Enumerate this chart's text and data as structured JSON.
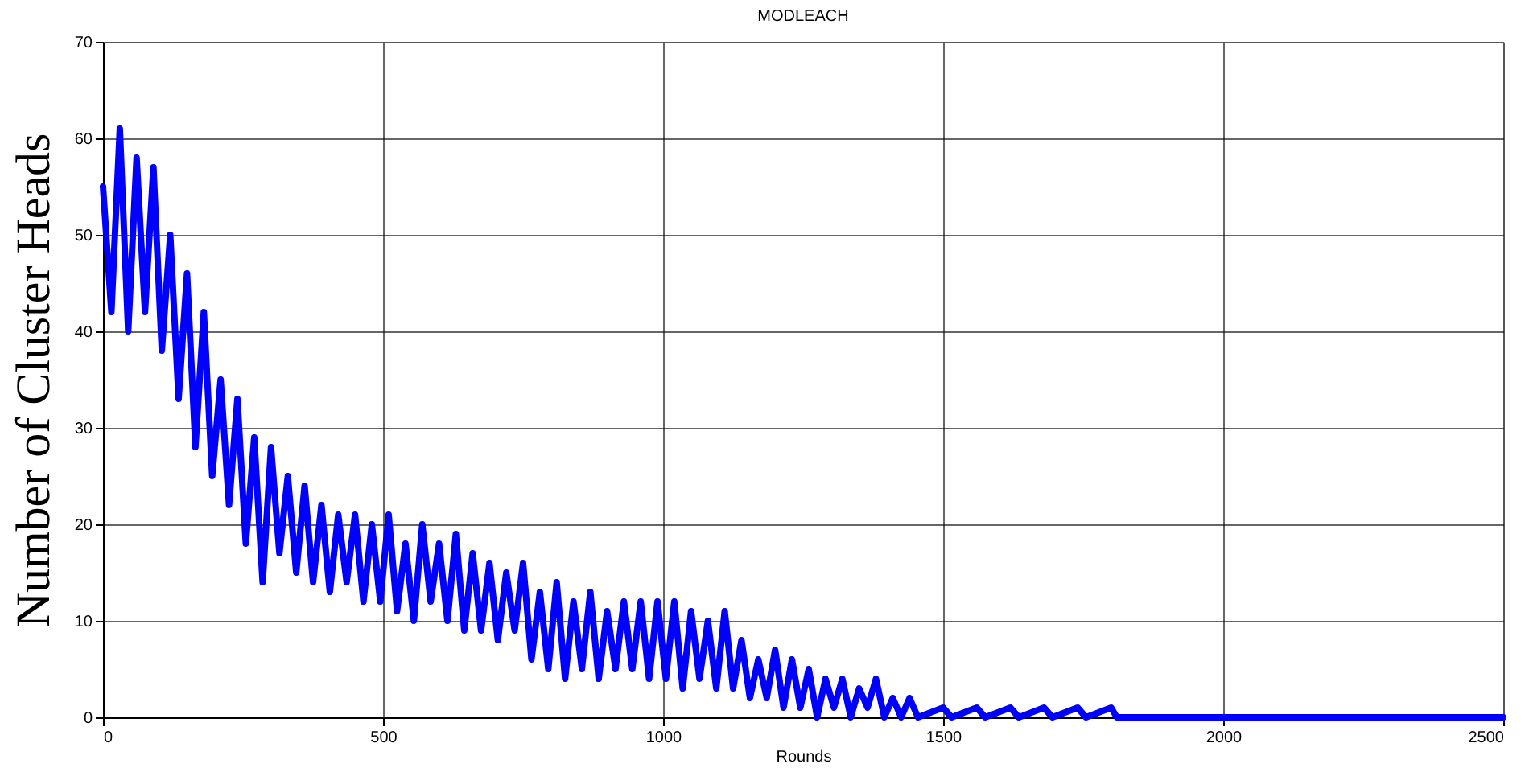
{
  "chart_data": {
    "type": "line",
    "title": "MODLEACH",
    "xlabel": "Rounds",
    "ylabel": "Number of Cluster Heads",
    "x": [
      0,
      15,
      30,
      45,
      60,
      75,
      90,
      105,
      120,
      135,
      150,
      165,
      180,
      195,
      210,
      225,
      240,
      255,
      270,
      285,
      300,
      315,
      330,
      345,
      360,
      375,
      390,
      405,
      420,
      435,
      450,
      465,
      480,
      495,
      510,
      525,
      540,
      555,
      570,
      585,
      600,
      615,
      630,
      645,
      660,
      675,
      690,
      705,
      720,
      735,
      750,
      765,
      780,
      795,
      810,
      825,
      840,
      855,
      870,
      885,
      900,
      915,
      930,
      945,
      960,
      975,
      990,
      1005,
      1020,
      1035,
      1050,
      1065,
      1080,
      1095,
      1110,
      1125,
      1140,
      1155,
      1170,
      1185,
      1200,
      1215,
      1230,
      1245,
      1260,
      1275,
      1290,
      1305,
      1320,
      1335,
      1350,
      1365,
      1380,
      1395,
      1410,
      1425,
      1440,
      1455,
      1500,
      1515,
      1560,
      1575,
      1620,
      1635,
      1680,
      1695,
      1740,
      1755,
      1800,
      1810,
      2500
    ],
    "series": [
      {
        "color": "#0000ff",
        "values": [
          55,
          42,
          61,
          40,
          58,
          42,
          57,
          38,
          50,
          33,
          46,
          28,
          42,
          25,
          35,
          22,
          33,
          18,
          29,
          14,
          28,
          17,
          25,
          15,
          24,
          14,
          22,
          13,
          21,
          14,
          21,
          12,
          20,
          12,
          21,
          11,
          18,
          10,
          20,
          12,
          18,
          10,
          19,
          9,
          17,
          9,
          16,
          8,
          15,
          9,
          16,
          6,
          13,
          5,
          14,
          4,
          12,
          5,
          13,
          4,
          11,
          5,
          12,
          5,
          12,
          4,
          12,
          4,
          12,
          3,
          11,
          4,
          10,
          3,
          11,
          3,
          8,
          2,
          6,
          2,
          7,
          1,
          6,
          1,
          5,
          0,
          4,
          1,
          4,
          0,
          3,
          1,
          4,
          0,
          2,
          0,
          2,
          0,
          1,
          0,
          1,
          0,
          1,
          0,
          1,
          0,
          1,
          0,
          1,
          0,
          0
        ]
      }
    ],
    "xlim": [
      0,
      2500
    ],
    "xticks": [
      0,
      500,
      1000,
      1500,
      2000,
      2500
    ],
    "ylim": [
      0,
      70
    ],
    "yticks": [
      0,
      10,
      20,
      30,
      40,
      50,
      60,
      70
    ],
    "grid": true,
    "marker": "none",
    "line_style": "solid"
  }
}
